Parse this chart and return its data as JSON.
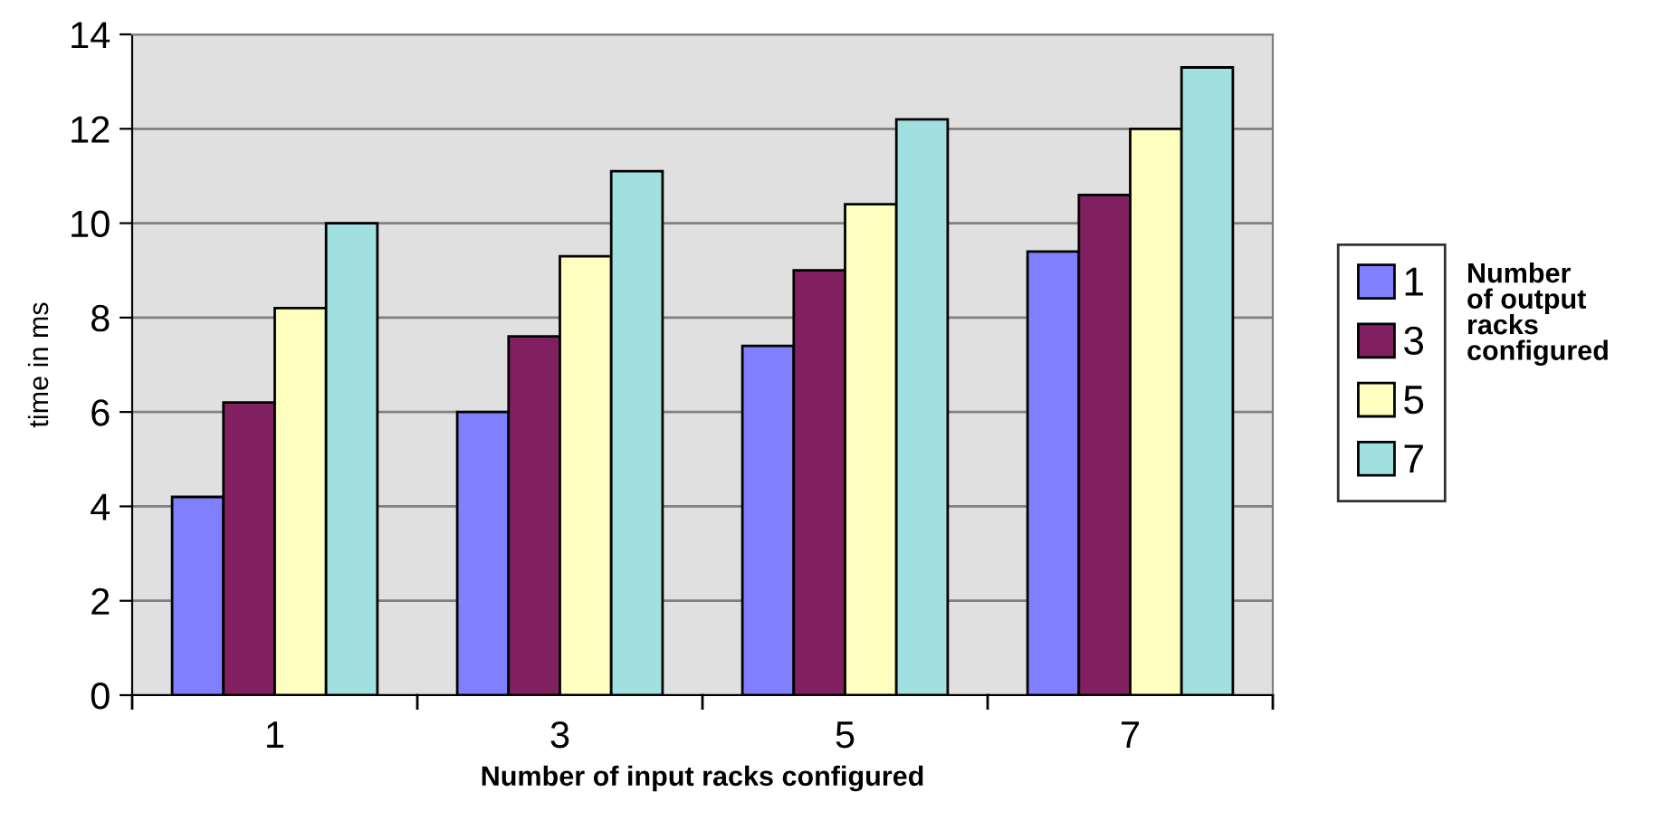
{
  "chart_data": {
    "type": "bar",
    "xlabel": "Number of input racks configured",
    "ylabel": "time in ms",
    "legend_title": "Number\nof output\nracks\nconfigured",
    "categories": [
      "1",
      "3",
      "5",
      "7"
    ],
    "series": [
      {
        "name": "1",
        "color": "#8080ff",
        "values": [
          4.2,
          6.0,
          7.4,
          9.4
        ]
      },
      {
        "name": "3",
        "color": "#802060",
        "values": [
          6.2,
          7.6,
          9.0,
          10.6
        ]
      },
      {
        "name": "5",
        "color": "#ffffc0",
        "values": [
          8.2,
          9.3,
          10.4,
          12.0
        ]
      },
      {
        "name": "7",
        "color": "#a0e0e0",
        "values": [
          10.0,
          11.1,
          12.2,
          13.3
        ]
      }
    ],
    "ylim": [
      0,
      14
    ],
    "yticks": [
      0,
      2,
      4,
      6,
      8,
      10,
      12,
      14
    ],
    "grid": "y",
    "legend": "right"
  }
}
